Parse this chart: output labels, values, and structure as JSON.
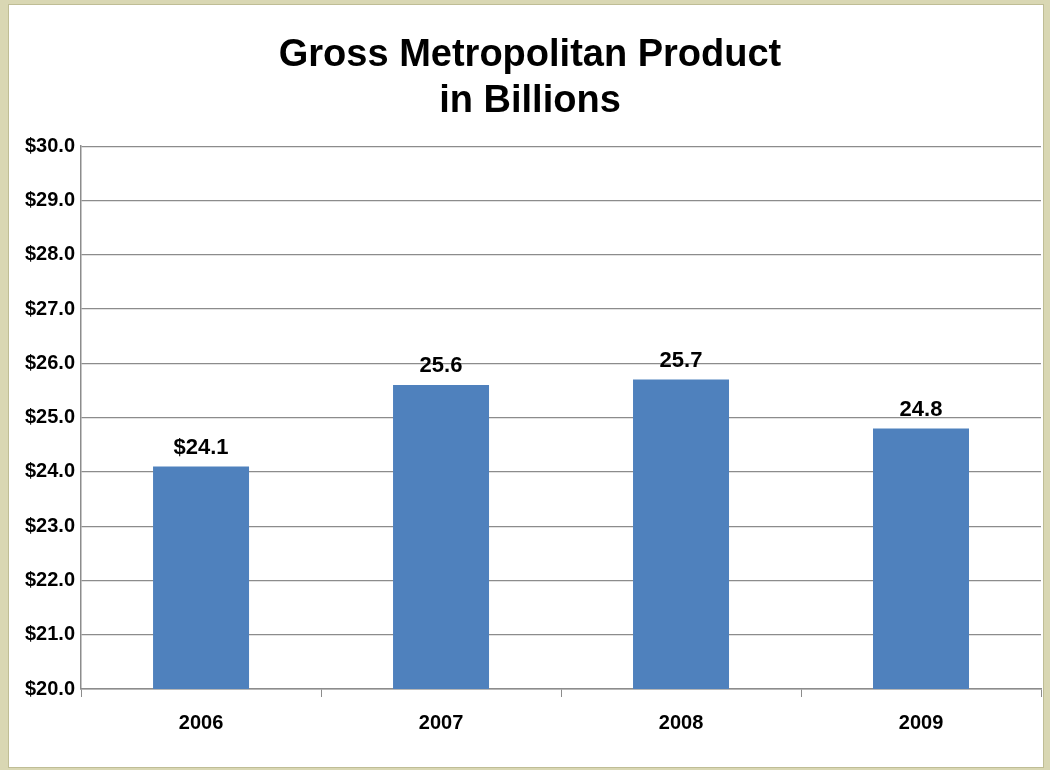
{
  "chart_data": {
    "type": "bar",
    "title": [
      "Gross Metropolitan Product",
      "in Billions"
    ],
    "categories": [
      "2006",
      "2007",
      "2008",
      "2009"
    ],
    "values": [
      24.1,
      25.6,
      25.7,
      24.8
    ],
    "value_labels": [
      "$24.1",
      "25.6",
      "25.7",
      "24.8"
    ],
    "color": "#4f81bd",
    "ylim": [
      20,
      30
    ],
    "yticks": [
      {
        "value": 20,
        "label": "$20.0"
      },
      {
        "value": 21,
        "label": "$21.0"
      },
      {
        "value": 22,
        "label": "$22.0"
      },
      {
        "value": 23,
        "label": "$23.0"
      },
      {
        "value": 24,
        "label": "$24.0"
      },
      {
        "value": 25,
        "label": "$25.0"
      },
      {
        "value": 26,
        "label": "$26.0"
      },
      {
        "value": 27,
        "label": "$27.0"
      },
      {
        "value": 28,
        "label": "$28.0"
      },
      {
        "value": 29,
        "label": "$29.0"
      },
      {
        "value": 30,
        "label": "$30.0"
      }
    ],
    "grid": "y",
    "legend": false
  }
}
